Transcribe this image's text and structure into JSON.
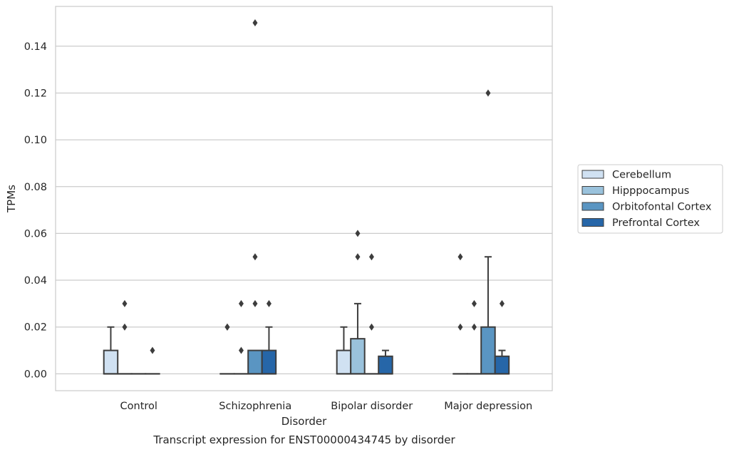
{
  "chart_data": {
    "type": "boxplot",
    "caption": "Transcript expression for ENST00000434745 by disorder",
    "xlabel": "Disorder",
    "ylabel": "TPMs",
    "ylim": [
      -0.0072,
      0.157
    ],
    "yticks": [
      0.0,
      0.02,
      0.04,
      0.06,
      0.08,
      0.1,
      0.12,
      0.14
    ],
    "ytick_labels": [
      "0.00",
      "0.02",
      "0.04",
      "0.06",
      "0.08",
      "0.10",
      "0.12",
      "0.14"
    ],
    "grid": "horizontal",
    "legend_position": "right",
    "categories": [
      "Control",
      "Schizophrenia",
      "Bipolar disorder",
      "Major depression"
    ],
    "series": [
      {
        "name": "Cerebellum",
        "color": "#d0e1f2",
        "boxes": [
          {
            "q1": 0,
            "median": 0,
            "q3": 0.01,
            "whisker_low": 0,
            "whisker_high": 0.02,
            "outliers": []
          },
          {
            "q1": 0,
            "median": 0,
            "q3": 0,
            "whisker_low": 0,
            "whisker_high": 0,
            "outliers": [
              0.02,
              0.02
            ]
          },
          {
            "q1": 0,
            "median": 0,
            "q3": 0.01,
            "whisker_low": 0,
            "whisker_high": 0.02,
            "outliers": []
          },
          {
            "q1": 0,
            "median": 0,
            "q3": 0,
            "whisker_low": 0,
            "whisker_high": 0,
            "outliers": [
              0.02,
              0.05
            ]
          }
        ]
      },
      {
        "name": "Hipppocampus",
        "color": "#9ac2dc",
        "boxes": [
          {
            "q1": 0,
            "median": 0,
            "q3": 0,
            "whisker_low": 0,
            "whisker_high": 0,
            "outliers": [
              0.02,
              0.03
            ]
          },
          {
            "q1": 0,
            "median": 0,
            "q3": 0,
            "whisker_low": 0,
            "whisker_high": 0,
            "outliers": [
              0.01,
              0.03
            ]
          },
          {
            "q1": 0,
            "median": 0,
            "q3": 0.015,
            "whisker_low": 0,
            "whisker_high": 0.03,
            "outliers": [
              0.05,
              0.06
            ]
          },
          {
            "q1": 0,
            "median": 0,
            "q3": 0,
            "whisker_low": 0,
            "whisker_high": 0,
            "outliers": [
              0.02,
              0.03
            ]
          }
        ]
      },
      {
        "name": "Orbitofontal Cortex",
        "color": "#5a95c2",
        "boxes": [
          {
            "q1": 0,
            "median": 0,
            "q3": 0,
            "whisker_low": 0,
            "whisker_high": 0,
            "outliers": []
          },
          {
            "q1": 0,
            "median": 0,
            "q3": 0.01,
            "whisker_low": 0,
            "whisker_high": 0.01,
            "outliers": [
              0.03,
              0.05,
              0.15
            ]
          },
          {
            "q1": 0,
            "median": 0,
            "q3": 0,
            "whisker_low": 0,
            "whisker_high": 0,
            "outliers": [
              0.02,
              0.05
            ]
          },
          {
            "q1": 0,
            "median": 0,
            "q3": 0.02,
            "whisker_low": 0,
            "whisker_high": 0.05,
            "outliers": [
              0.12
            ]
          }
        ]
      },
      {
        "name": "Prefrontal Cortex",
        "color": "#2666a8",
        "boxes": [
          {
            "q1": 0,
            "median": 0,
            "q3": 0,
            "whisker_low": 0,
            "whisker_high": 0,
            "outliers": [
              0.01
            ]
          },
          {
            "q1": 0,
            "median": 0,
            "q3": 0.01,
            "whisker_low": 0,
            "whisker_high": 0.02,
            "outliers": [
              0.03
            ]
          },
          {
            "q1": 0,
            "median": 0,
            "q3": 0.0075,
            "whisker_low": 0,
            "whisker_high": 0.01,
            "outliers": []
          },
          {
            "q1": 0,
            "median": 0,
            "q3": 0.0075,
            "whisker_low": 0,
            "whisker_high": 0.01,
            "outliers": [
              0.03
            ]
          }
        ]
      }
    ]
  }
}
